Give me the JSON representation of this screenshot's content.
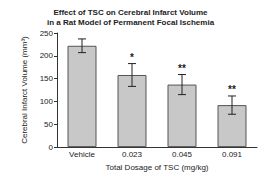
{
  "chart_data": {
    "type": "bar",
    "title": "Effect of TSC on Cerebral Infarct Volume\nin a Rat Model of Permanent Focal Ischemia",
    "x_label": "Total Dosage of TSC (mg/kg)",
    "y_label": "Cerebral Infarct Volume (mm³)",
    "categories": [
      "Vehicle",
      "0.023",
      "0.045",
      "0.091"
    ],
    "values": [
      222,
      158,
      137,
      92
    ],
    "errors": [
      15,
      25,
      22,
      20
    ],
    "significance": [
      null,
      "*",
      "**",
      "**"
    ],
    "color": "#c8c8c8",
    "ylim": [
      0,
      250
    ],
    "yticks": [
      0,
      50,
      100,
      150,
      200,
      250
    ],
    "grid": false
  }
}
